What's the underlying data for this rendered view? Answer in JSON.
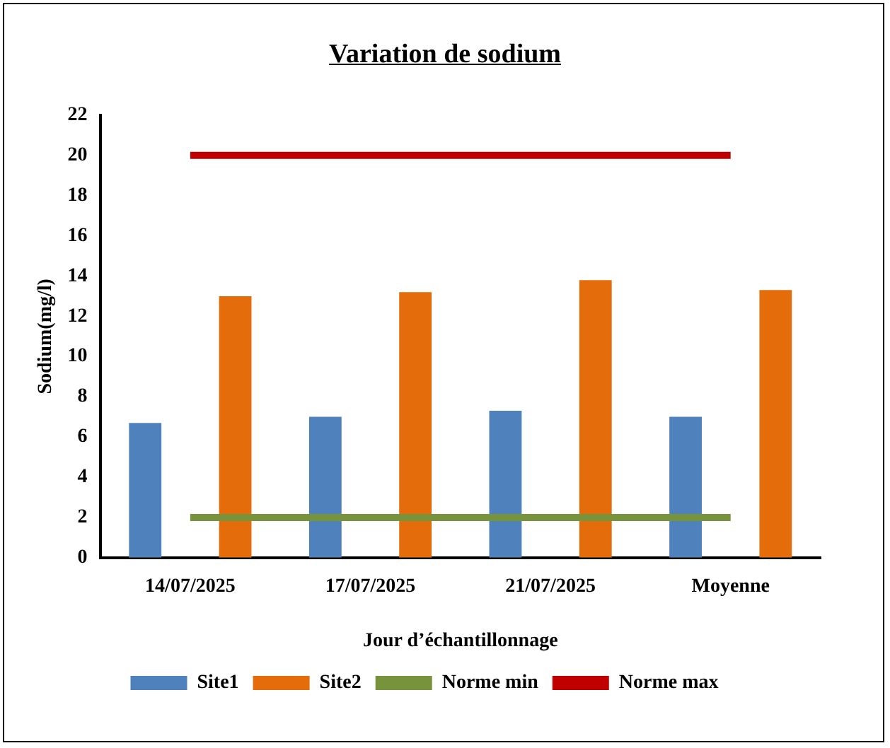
{
  "chart_data": {
    "type": "bar",
    "title": "Variation de sodium",
    "xlabel": "Jour d’échantillonnage",
    "ylabel": "Sodium(mg/l)",
    "categories": [
      "14/07/2025",
      "17/07/2025",
      "21/07/2025",
      "Moyenne"
    ],
    "series": [
      {
        "name": "Site1",
        "color": "#4f81bd",
        "values": [
          6.7,
          7.0,
          7.3,
          7.0
        ]
      },
      {
        "name": "Site2",
        "color": "#e46c0a",
        "values": [
          13.0,
          13.2,
          13.8,
          13.3
        ]
      },
      {
        "name": "Norme min",
        "type": "line",
        "color": "#77933c",
        "values": [
          2,
          2,
          2,
          2
        ]
      },
      {
        "name": "Norme max",
        "type": "line",
        "color": "#c00000",
        "values": [
          20,
          20,
          20,
          20
        ]
      }
    ],
    "ylim": [
      0,
      22
    ],
    "yticks": [
      0,
      2,
      4,
      6,
      8,
      10,
      12,
      14,
      16,
      18,
      20,
      22
    ],
    "grid": false,
    "legend": "bottom",
    "marker": "none"
  }
}
